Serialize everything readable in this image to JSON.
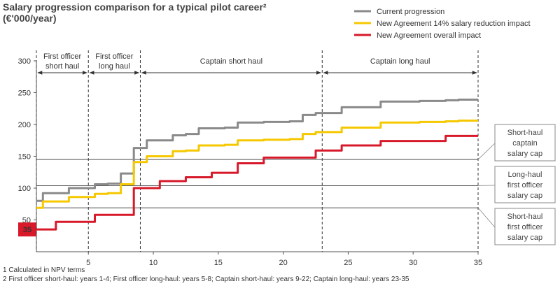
{
  "title": [
    "Salary progression comparison for a typical pilot career²",
    "(€'000/year)"
  ],
  "footnotes": [
    "1 Calculated in NPV terms",
    "2 First officer short-haul: years 1-4; First officer long-haul: years 5-8; Captain short-haul: years 9-22; Captain long-haul: years 23-35"
  ],
  "chart_data": {
    "type": "line",
    "step": true,
    "xlim": [
      1,
      35
    ],
    "ylim": [
      0,
      300
    ],
    "xticks": [
      5,
      10,
      15,
      20,
      25,
      30,
      35
    ],
    "yticks": [
      50,
      100,
      150,
      200,
      250,
      300
    ],
    "highlight_value": {
      "label": "35",
      "value": 35,
      "color": "#d7192a"
    },
    "legend": {
      "placement": "top-right"
    },
    "x": [
      1,
      2,
      3,
      4,
      5,
      6,
      7,
      8,
      9,
      10,
      11,
      12,
      13,
      14,
      15,
      16,
      17,
      18,
      19,
      20,
      21,
      22,
      23,
      24,
      25,
      26,
      27,
      28,
      29,
      30,
      31,
      32,
      33,
      34,
      35
    ],
    "series": [
      {
        "name": "Current progression",
        "color": "#8a8a8a",
        "values": [
          80,
          92,
          92,
          100,
          100,
          106,
          107,
          123,
          163,
          175,
          175,
          183,
          185,
          194,
          194,
          195,
          203,
          203,
          204,
          204,
          205,
          215,
          218,
          218,
          227,
          227,
          227,
          236,
          236,
          236,
          237,
          237,
          238,
          239,
          239
        ]
      },
      {
        "name": "New Agreement 14% salary reduction impact",
        "color": "#f5c800",
        "values": [
          69,
          79,
          79,
          86,
          86,
          91,
          92,
          106,
          141,
          150,
          150,
          158,
          159,
          167,
          167,
          168,
          175,
          175,
          176,
          176,
          177,
          185,
          188,
          188,
          195,
          195,
          195,
          203,
          203,
          203,
          204,
          204,
          205,
          206,
          206
        ]
      },
      {
        "name": "New Agreement overall impact",
        "color": "#d7192a",
        "values": [
          35,
          35,
          47,
          47,
          47,
          58,
          58,
          58,
          100,
          100,
          111,
          111,
          117,
          117,
          124,
          124,
          139,
          139,
          148,
          148,
          148,
          148,
          159,
          159,
          167,
          167,
          167,
          174,
          174,
          174,
          174,
          174,
          182,
          182,
          182
        ]
      }
    ],
    "phases": [
      {
        "label": [
          "First officer",
          "short haul"
        ],
        "from": 1,
        "to": 5
      },
      {
        "label": [
          "First officer",
          "long haul"
        ],
        "from": 5,
        "to": 9
      },
      {
        "label": [
          "Captain short haul"
        ],
        "from": 9,
        "to": 23
      },
      {
        "label": [
          "Captain long haul"
        ],
        "from": 23,
        "to": 35
      }
    ],
    "caps": [
      {
        "label": [
          "Short-haul",
          "captain",
          "salary cap"
        ],
        "value": 145
      },
      {
        "label": [
          "Long-haul",
          "first officer",
          "salary cap"
        ],
        "value": 104
      },
      {
        "label": [
          "Short-haul",
          "first officer",
          "salary cap"
        ],
        "value": 69
      }
    ]
  }
}
